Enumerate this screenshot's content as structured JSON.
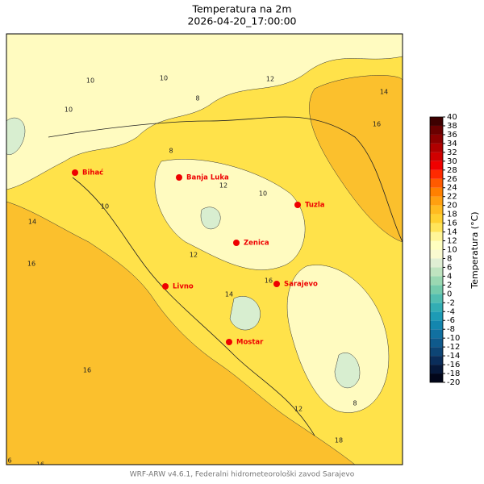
{
  "title": "Temperatura na 2m",
  "subtitle": "2026-04-20_17:00:00",
  "cities": [
    "Bihać",
    "Banja Luka",
    "Tuzla",
    "Zenica",
    "Sarajevo",
    "Livno",
    "Mostar"
  ],
  "contour_labels": [
    10,
    10,
    10,
    12,
    14,
    16,
    8,
    12,
    10,
    12,
    14,
    16,
    16,
    16,
    10,
    14,
    12,
    8,
    18,
    6,
    16,
    8
  ],
  "colorbar": {
    "label": "Temperatura (°C)",
    "ticks": [
      -20,
      -18,
      -16,
      -14,
      -12,
      -10,
      -8,
      -6,
      -4,
      -2,
      0,
      2,
      4,
      6,
      8,
      10,
      12,
      14,
      16,
      18,
      20,
      22,
      24,
      26,
      28,
      30,
      32,
      34,
      36,
      38,
      40
    ],
    "colors": [
      "#02061a",
      "#06183a",
      "#0a2d5a",
      "#0d4575",
      "#0f5a8c",
      "#1170a0",
      "#1486ae",
      "#1d9bb5",
      "#33adb3",
      "#52bdb0",
      "#75cbac",
      "#9ad8b2",
      "#bfe4c0",
      "#e0efd4",
      "#fafad0",
      "#ffffc0",
      "#fff598",
      "#ffe45a",
      "#ffd030",
      "#ffbb20",
      "#ffa010",
      "#ff8000",
      "#ff5a00",
      "#ff2a00",
      "#f00000",
      "#d00000",
      "#b00000",
      "#8c0000",
      "#6a0000",
      "#3e0000"
    ]
  },
  "footer": "WRF-ARW v4.6.1, Federalni hidrometeorološki zavod Sarajevo"
}
